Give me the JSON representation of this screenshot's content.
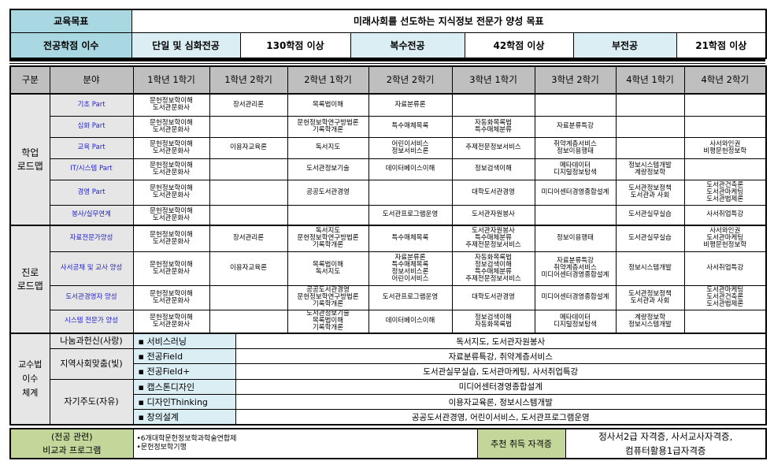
{
  "goal": {
    "label": "교육목표",
    "value": "미래사회를 선도하는 지식정보 전문가 양성 목표"
  },
  "credits": {
    "label": "전공학점 이수",
    "items": [
      {
        "type": "단일 및 심화전공",
        "value": "130학점 이상"
      },
      {
        "type": "복수전공",
        "value": "42학점 이상"
      },
      {
        "type": "부전공",
        "value": "21학점 이상"
      }
    ]
  },
  "header": [
    "구분",
    "분야",
    "1학년 1학기",
    "1학년 2학기",
    "2학년 1학기",
    "2학년 2학기",
    "3학년 1학기",
    "3학년 2학기",
    "4학년 1학기",
    "4학년 2학기"
  ],
  "sections": [
    {
      "category": "학업\n로드맵",
      "rows": [
        {
          "field": "기초 Part",
          "cells": [
            "문헌정보학이해\n도서관문화사",
            "장서관리론",
            "목록법이해",
            "자료분류론",
            "",
            "",
            "",
            ""
          ]
        },
        {
          "field": "심화 Part",
          "cells": [
            "문헌정보학이해\n도서관문화사",
            "",
            "문헌정보학연구방법론\n기록학개론",
            "특수매체목록",
            "자동화목록법\n특수매체분류",
            "자료분류특강",
            "",
            ""
          ]
        },
        {
          "field": "교육 Part",
          "cells": [
            "문헌정보학이해\n도서관문화사",
            "이용자교육론",
            "독서지도",
            "어린이서비스\n정보서비스론",
            "주제전문정보서비스",
            "취약계층서비스\n정보이용행태",
            "",
            "사서와인권\n비평문헌정보학"
          ]
        },
        {
          "field": "IT/시스템 Part",
          "cells": [
            "문헌정보학이해\n도서관문화사",
            "",
            "도서관정보기술",
            "데이터베이스이해",
            "정보검색이해",
            "메타데이터\n디지털정보탐색",
            "정보시스템개발\n계량정보학",
            ""
          ]
        },
        {
          "field": "경영 Part",
          "cells": [
            "문헌정보학이해\n도서관문화사",
            "",
            "공공도서관경영",
            "",
            "대학도서관경영",
            "미디어센터경영종합설계",
            "도서관정보정책\n도서관과 사회",
            "도서관건축론\n도서관마케팅\n도서관법제론"
          ]
        },
        {
          "field": "봉사/실무연계",
          "cells": [
            "문헌정보학이해\n도서관문화사",
            "",
            "",
            "도서관프로그램운영",
            "도서관자원봉사",
            "",
            "도서관실무실습",
            "사서취업특강"
          ]
        }
      ]
    },
    {
      "category": "진로\n로드맵",
      "rows": [
        {
          "field": "자료전문가양성",
          "cells": [
            "문헌정보학이해\n도서관문화사",
            "장서관리론",
            "독서지도\n문헌정보학연구방법론\n기록학개론",
            "특수매체목록",
            "도서관자원봉사\n특수매체분류\n주제전문정보서비스",
            "정보이용행태",
            "도서관실무실습",
            "사서와인권\n도서관마케팅\n비평문헌정보학"
          ]
        },
        {
          "field": "사서공채 및 교사 양성",
          "cells": [
            "문헌정보학이해\n도서관문화사",
            "이용자교육론",
            "목록법이해\n독서지도",
            "자료분류론\n특수매체목록\n정보서비스론\n어린이서비스",
            "자동화목록법\n정보검색이해\n특수매체분류\n주제전문정보서비스",
            "자료분류특강\n취약계층서비스\n미디어센터경영종합설계",
            "정보시스템개발",
            "사서취업특강"
          ]
        },
        {
          "field": "도서관경영자 양성",
          "cells": [
            "문헌정보학이해\n도서관문화사",
            "",
            "공공도서관경영\n문헌정보학연구방법론\n기록학개론",
            "도서관프로그램운영",
            "대학도서관경영",
            "미디어센터경영종합설계",
            "도서관정보정책\n도서관과 사회",
            "도서관마케팅\n도서관건축론\n도서관법제론"
          ]
        },
        {
          "field": "시스템 전문가 양성",
          "cells": [
            "문헌정보학이해\n도서관문화사",
            "",
            "도서관정보기술\n목록법이해\n기록학개론",
            "데이터베이스이해",
            "정보검색이해\n자동화목록법",
            "메타데이터\n디지털정보탐색",
            "계량정보학\n정보시스템개발",
            ""
          ]
        }
      ]
    }
  ],
  "teaching": {
    "category": "교수법\n이수\n체계",
    "groups": [
      "나눔과헌신(사랑)",
      "지역사회맞춤(빛)",
      "자기주도(자유)"
    ],
    "rows": [
      {
        "method": "▪ 서비스러닝",
        "courses": "독서지도, 도서관자원봉사"
      },
      {
        "method": "▪ 전공Field",
        "courses": "자료분류특강, 취약계층서비스"
      },
      {
        "method": "▪ 전공Field+",
        "courses": "도서관실무실습, 도서관마케팅, 사서취업특강"
      },
      {
        "method": "▪ 캡스톤디자인",
        "courses": "미디어센터경영종합설계"
      },
      {
        "method": "▪ 디자인Thinking",
        "courses": "이용자교육론, 정보시스템개발"
      },
      {
        "method": "▪ 창의설계",
        "courses": "공공도서관경영, 어린이서비스, 도서관프로그램운영"
      }
    ]
  },
  "extracurricular": {
    "label": "(전공 관련)\n비교과 프로그램",
    "items": "•6개대학문헌정보학과학술연합제\n•문헌정보학기행"
  },
  "certificates": {
    "label": "추천 취득 자격증",
    "value": "정사서2급 자격증, 사서교사자격증,\n컴퓨터활용1급자격증"
  },
  "colors": {
    "label_blue": "#a9d8e3",
    "pale_blue": "#daeef3",
    "header_gray": "#bfbfbf",
    "category_gray": "#e6e6e6",
    "field_text": "#1f1fcc",
    "green": "#c4d79b"
  }
}
